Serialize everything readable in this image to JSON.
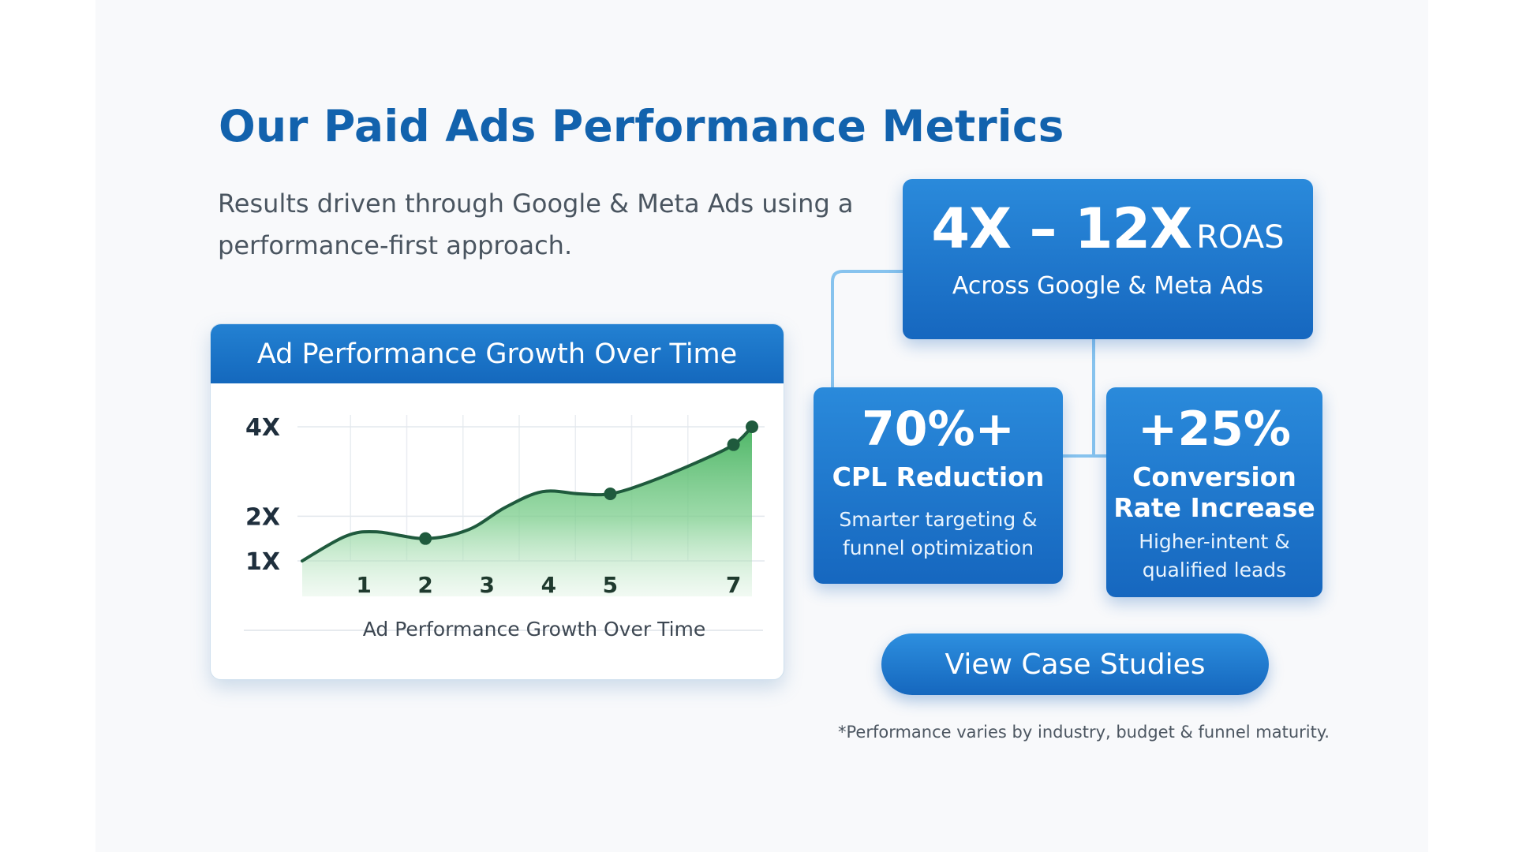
{
  "page": {
    "title": "Our Paid Ads Performance Metrics",
    "subtitle": "Results driven through Google & Meta Ads using a performance-first approach."
  },
  "chart_data": {
    "type": "area",
    "title": "Ad Performance Growth Over Time",
    "xlabel": "Ad Performance Growth Over Time",
    "ylabel": "",
    "x_ticks": [
      "1",
      "2",
      "3",
      "4",
      "5",
      "7"
    ],
    "y_ticks": [
      "1X",
      "2X",
      "4X"
    ],
    "x_tick_values": [
      1,
      2,
      3,
      4,
      5,
      7
    ],
    "y_tick_values": [
      1,
      2,
      4
    ],
    "xlim": [
      0,
      7.3
    ],
    "ylim": [
      1,
      4
    ],
    "grid": true,
    "series": [
      {
        "x": [
          0,
          0.7,
          1.2,
          2,
          2.7,
          3.3,
          3.9,
          4.5,
          5,
          5.6,
          6.4,
          7,
          7.3
        ],
        "y": [
          1,
          1.55,
          1.65,
          1.5,
          1.7,
          2.2,
          2.55,
          2.5,
          2.5,
          2.75,
          3.2,
          3.6,
          4
        ],
        "markers_x": [
          2,
          5,
          7,
          7.3
        ],
        "markers_y": [
          1.5,
          2.5,
          3.6,
          4
        ],
        "color": "#3aa955"
      }
    ]
  },
  "roas_card": {
    "value": "4X – 12X",
    "unit": "ROAS",
    "subtitle": "Across Google & Meta Ads"
  },
  "cpl_card": {
    "value": "70%+",
    "label": "CPL Reduction",
    "detail": "Smarter targeting & funnel optimization"
  },
  "conversion_card": {
    "value": "+25%",
    "label": "Conversion Rate Increase",
    "detail": "Higher-intent & qualified leads"
  },
  "cta": {
    "label": "View Case Studies"
  },
  "footnote": "*Performance varies by industry, budget & funnel maturity.",
  "colors": {
    "title": "#1262ad",
    "card_blue": "#1d76c9",
    "chart_green": "#3aa955",
    "chart_line": "#1f5a3d"
  }
}
